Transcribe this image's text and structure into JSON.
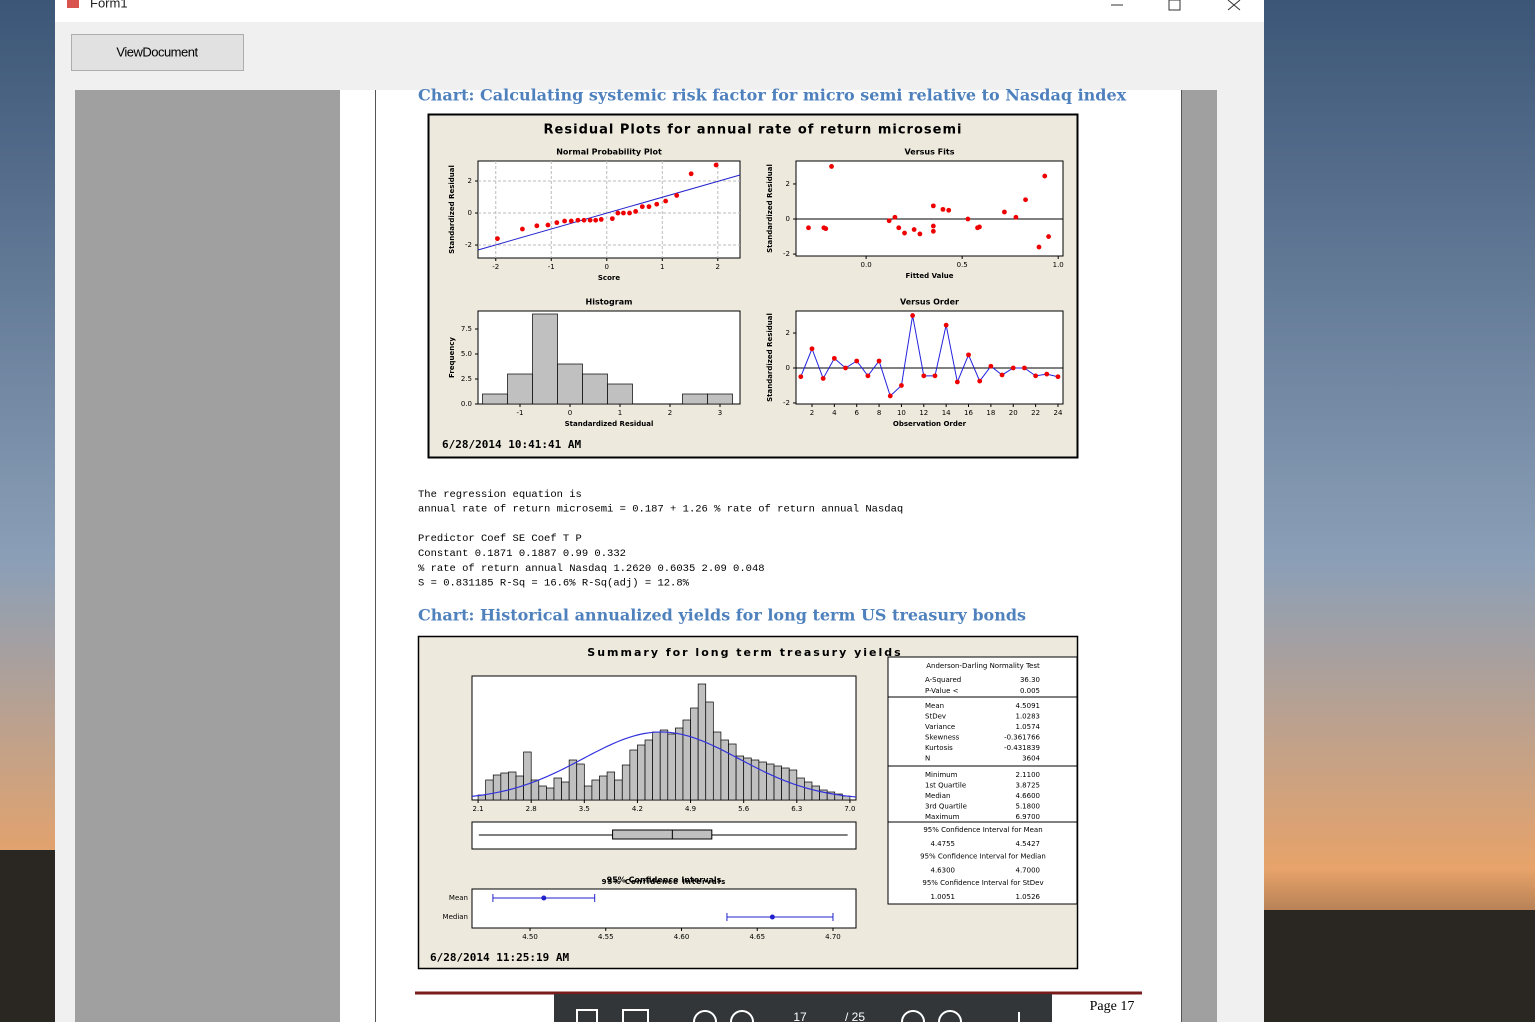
{
  "window": {
    "title": "Form1",
    "button": "ViewDocument"
  },
  "document": {
    "heading1": "Chart: Calculating systemic risk factor for micro semi relative to Nasdaq index",
    "residual_plots": {
      "title": "Residual Plots for annual rate of return microsemi",
      "timestamp": "6/28/2014 10:41:41 AM",
      "normal": {
        "title": "Normal Probability Plot",
        "xlabel": "Score",
        "ylabel": "Standardized Residual",
        "xlim": [
          -2.32,
          2.4
        ],
        "ylim": [
          -2.81,
          3.25
        ],
        "xticks": [
          -2,
          -1,
          0,
          1,
          2
        ],
        "yticks": [
          -2,
          0,
          2
        ],
        "x": [
          -1.97,
          -1.52,
          -1.26,
          -1.06,
          -0.9,
          -0.76,
          -0.64,
          -0.52,
          -0.41,
          -0.3,
          -0.2,
          -0.1,
          0.1,
          0.2,
          0.3,
          0.41,
          0.52,
          0.64,
          0.76,
          0.9,
          1.06,
          1.26,
          1.52,
          1.97
        ],
        "y": [
          -1.6,
          -1.0,
          -0.8,
          -0.75,
          -0.6,
          -0.5,
          -0.5,
          -0.45,
          -0.45,
          -0.45,
          -0.45,
          -0.4,
          -0.35,
          0,
          0,
          0,
          0.1,
          0.4,
          0.4,
          0.55,
          0.75,
          1.1,
          2.45,
          3.0
        ]
      },
      "fits": {
        "title": "Versus Fits",
        "xlabel": "Fitted Value",
        "ylabel": "Standardized Residual",
        "xlim": [
          -0.365,
          1.025
        ],
        "ylim": [
          -2.11,
          3.31
        ],
        "xticks": [
          {
            "value": 0,
            "label": "0.0"
          },
          {
            "value": 0.5,
            "label": "0.5"
          },
          {
            "value": 1,
            "label": "1.0"
          }
        ],
        "yticks": [
          -2,
          0,
          2
        ],
        "x": [
          -0.3,
          -0.22,
          -0.21,
          -0.18,
          0.12,
          0.15,
          0.17,
          0.2,
          0.25,
          0.28,
          0.35,
          0.35,
          0.35,
          0.4,
          0.43,
          0.53,
          0.58,
          0.59,
          0.72,
          0.78,
          0.83,
          0.9,
          0.93,
          0.95
        ],
        "y": [
          -0.5,
          -0.5,
          -0.55,
          3.0,
          -0.1,
          0.1,
          -0.5,
          -0.8,
          -0.6,
          -0.85,
          -0.4,
          -0.7,
          0.75,
          0.55,
          0.5,
          0,
          -0.5,
          -0.45,
          0.4,
          0.1,
          1.1,
          -1.6,
          2.45,
          -1.0
        ]
      },
      "histogram": {
        "title": "Histogram",
        "xlabel": "Standardized Residual",
        "ylabel": "Frequency",
        "xlim": [
          -1.84,
          3.4
        ],
        "ylim": [
          0,
          9.3
        ],
        "xticks": [
          -1,
          0,
          1,
          2,
          3
        ],
        "yticks": [
          {
            "value": 0,
            "label": "0.0"
          },
          {
            "value": 2.5,
            "label": "2.5"
          },
          {
            "value": 5,
            "label": "5.0"
          },
          {
            "value": 7.5,
            "label": "7.5"
          }
        ],
        "bins": [
          -1.75,
          -1.25,
          -0.75,
          -0.25,
          0.25,
          0.75,
          1.25,
          1.75,
          2.25,
          2.75,
          3.25
        ],
        "values": [
          1,
          3,
          9,
          4,
          3,
          2,
          0,
          0,
          1,
          1
        ]
      },
      "order": {
        "title": "Versus Order",
        "xlabel": "Observation Order",
        "ylabel": "Standardized Residual",
        "xlim": [
          0.57,
          24.45
        ],
        "ylim": [
          -2.06,
          3.26
        ],
        "xticks": [
          2,
          4,
          6,
          8,
          10,
          12,
          14,
          16,
          18,
          20,
          22,
          24
        ],
        "yticks": [
          -2,
          0,
          2
        ],
        "x": [
          1,
          2,
          3,
          4,
          5,
          6,
          7,
          8,
          9,
          10,
          11,
          12,
          13,
          14,
          15,
          16,
          17,
          18,
          19,
          20,
          21,
          22,
          23,
          24
        ],
        "y": [
          -0.5,
          1.1,
          -0.6,
          0.55,
          0,
          0.4,
          -0.45,
          0.4,
          -1.6,
          -1.0,
          3.0,
          -0.45,
          -0.45,
          2.45,
          -0.8,
          0.75,
          -0.75,
          0.1,
          -0.4,
          0,
          0,
          -0.45,
          -0.35,
          -0.5
        ]
      }
    },
    "regression_lines": [
      "The regression equation is",
      "annual rate of return microsemi = 0.187 + 1.26 % rate of return annual Nasdaq",
      "",
      "Predictor                        Coef  SE Coef     T      P",
      "Constant                       0.1871   0.1887  0.99  0.332",
      "% rate of return annual Nasdaq  1.2620   0.6035  2.09  0.048",
      "S = 0.831185   R-Sq = 16.6%   R-Sq(adj) = 12.8%"
    ],
    "heading2": "Chart: Historical annualized yields for long term US treasury bonds",
    "summary": {
      "title": "Summary for long term treasury yields",
      "timestamp": "6/28/2014 11:25:19 AM",
      "histogram": {
        "xlim": [
          2.02,
          7.08
        ],
        "xticks": [
          2.1,
          2.8,
          3.5,
          4.2,
          4.9,
          5.6,
          6.3,
          {
            "value": 7,
            "label": "7.0"
          }
        ],
        "bins": [
          2.1,
          2.2,
          2.3,
          2.4,
          2.5,
          2.6,
          2.7,
          2.8,
          2.9,
          3.0,
          3.1,
          3.2,
          3.3,
          3.4,
          3.5,
          3.6,
          3.7,
          3.8,
          3.9,
          4.0,
          4.1,
          4.2,
          4.3,
          4.4,
          4.5,
          4.6,
          4.7,
          4.8,
          4.9,
          5.0,
          5.1,
          5.2,
          5.3,
          5.4,
          5.5,
          5.6,
          5.7,
          5.8,
          5.9,
          6.0,
          6.1,
          6.2,
          6.3,
          6.4,
          6.5,
          6.6,
          6.7,
          6.8,
          6.9,
          7.0
        ],
        "values": [
          5,
          20,
          25,
          27,
          28,
          24,
          48,
          20,
          14,
          12,
          22,
          18,
          40,
          36,
          14,
          20,
          24,
          28,
          20,
          35,
          50,
          55,
          60,
          68,
          70,
          66,
          72,
          80,
          92,
          116,
          98,
          68,
          60,
          56,
          44,
          42,
          40,
          38,
          36,
          34,
          32,
          30,
          22,
          18,
          14,
          10,
          8,
          6,
          4
        ]
      },
      "ci": {
        "title": "95% Confidence Intervals",
        "labels": [
          "Mean",
          "Median"
        ],
        "xlim": [
          4.4617,
          4.7152
        ],
        "xticks": [
          {
            "value": 4.5,
            "label": "4.50"
          },
          4.55,
          {
            "value": 4.6,
            "label": "4.60"
          },
          4.65,
          {
            "value": 4.7,
            "label": "4.70"
          }
        ]
      },
      "ad": {
        "title": "Anderson-Darling Normality Test",
        "rows": [
          [
            "A-Squared",
            {
              "value": 36.3,
              "label": "36.30"
            }
          ],
          [
            "P-Value <",
            0.005
          ]
        ]
      },
      "moments": [
        [
          "Mean",
          4.5091
        ],
        [
          "StDev",
          1.0283
        ],
        [
          "Variance",
          1.0574
        ],
        [
          "Skewness",
          -0.361766
        ],
        [
          "Kurtosis",
          -0.431839
        ],
        [
          "N",
          3604
        ]
      ],
      "quantiles": [
        [
          "Minimum",
          {
            "value": 2.11,
            "label": "2.1100"
          }
        ],
        [
          "1st Quartile",
          3.8725
        ],
        [
          "Median",
          {
            "value": 4.66,
            "label": "4.6600"
          }
        ],
        [
          "3rd Quartile",
          {
            "value": 5.18,
            "label": "5.1800"
          }
        ],
        [
          "Maximum",
          {
            "value": 6.97,
            "label": "6.9700"
          }
        ]
      ],
      "intervals": [
        {
          "title": "95% Confidence Interval for Mean",
          "low": 4.4755,
          "high": 4.5427
        },
        {
          "title": "95% Confidence Interval for Median",
          "low": {
            "value": 4.63,
            "label": "4.6300"
          },
          "high": {
            "value": 4.7,
            "label": "4.7000"
          }
        },
        {
          "title": "95% Confidence Interval for StDev",
          "low": 1.0051,
          "high": 1.0526
        }
      ]
    },
    "footer": "Page 17"
  },
  "viewer": {
    "page": 17,
    "total": "/ 25"
  }
}
